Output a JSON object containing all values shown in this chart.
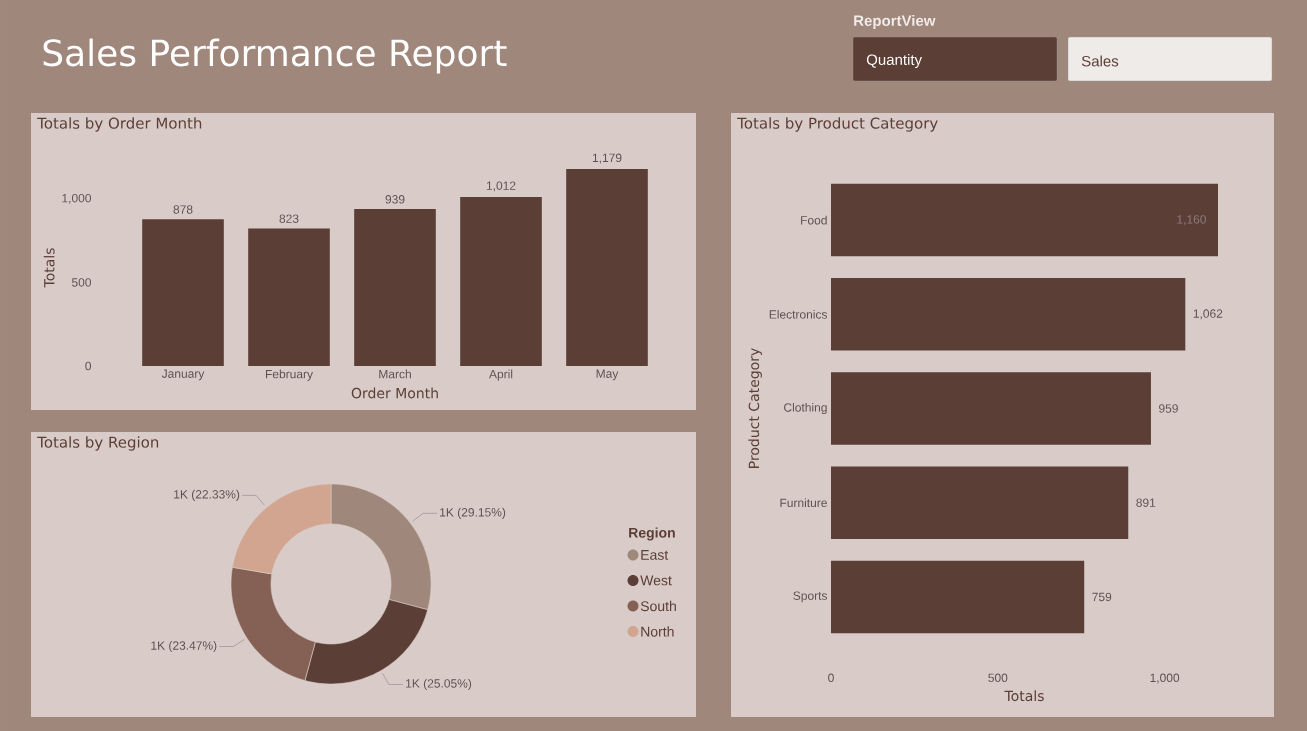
{
  "chart_data": [
    {
      "type": "other",
      "title": "Sales Performance Report",
      "legend_title": "ReportView",
      "categories": [
        "Quantity",
        "Sales"
      ],
      "colors": [
        "#5b3e36",
        "#eeebe9"
      ]
    },
    {
      "type": "bar",
      "title": "Totals by Order Month",
      "xlabel": "Order Month",
      "ylabel": "Totals",
      "categories": [
        "January",
        "February",
        "March",
        "April",
        "May"
      ],
      "values": [
        878,
        823,
        939,
        1012,
        1179
      ],
      "value_labels": [
        "878",
        "823",
        "939",
        "1,012",
        "1,179"
      ],
      "color": "#5b3e36",
      "ylim": [
        0,
        1179
      ],
      "yticks": [
        0,
        500,
        {
          "value": 1000,
          "label": "1,000"
        }
      ]
    },
    {
      "type": "donut",
      "title": "Totals by Region",
      "legend_title": "Region",
      "legend": "right",
      "categories": [
        "East",
        "West",
        "South",
        "North"
      ],
      "values": [
        29.15,
        25.05,
        23.47,
        22.33
      ],
      "value_labels": [
        "1K (29.15%)",
        "1K (25.05%)",
        "1K (23.47%)",
        "1K (22.33%)"
      ],
      "colors": [
        "#a0877c",
        "#5b3e36",
        "#856155",
        "#d2a591"
      ]
    },
    {
      "type": "bar",
      "orientation": "horizontal",
      "title": "Totals by Product Category",
      "xlabel": "Totals",
      "ylabel": "Product Category",
      "categories": [
        "Food",
        "Electronics",
        "Clothing",
        "Furniture",
        "Sports"
      ],
      "values": [
        1160,
        1062,
        959,
        891,
        759
      ],
      "value_labels": [
        "1,160",
        "1,062",
        "959",
        "891",
        "759"
      ],
      "color": "#5b3e36",
      "xlim": [
        0,
        1160
      ],
      "xticks": [
        0,
        500,
        {
          "value": 1000,
          "label": "1,000"
        }
      ]
    }
  ]
}
